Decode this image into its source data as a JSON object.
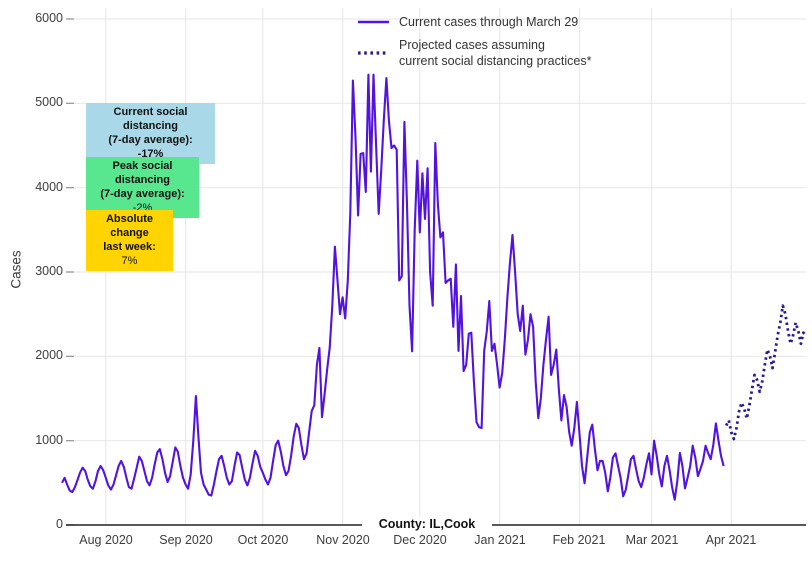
{
  "chart_data": {
    "type": "line",
    "xlabel": "County: IL,Cook",
    "ylabel": "Cases",
    "ylim": [
      0,
      6000
    ],
    "grid": true,
    "legend_position": "top-center-inside",
    "y_ticks": [
      0,
      1000,
      2000,
      3000,
      4000,
      5000,
      6000
    ],
    "x_ticks": [
      {
        "label": "Aug 2020",
        "day": 17
      },
      {
        "label": "Sep 2020",
        "day": 48
      },
      {
        "label": "Oct 2020",
        "day": 78
      },
      {
        "label": "Nov 2020",
        "day": 109
      },
      {
        "label": "Dec 2020",
        "day": 139
      },
      {
        "label": "Jan 2021",
        "day": 170
      },
      {
        "label": "Feb 2021",
        "day": 201
      },
      {
        "label": "Mar 2021",
        "day": 229
      },
      {
        "label": "Apr 2021",
        "day": 260
      }
    ],
    "x_domain_days": [
      0,
      289
    ],
    "series": [
      {
        "name": "Current cases through March 29",
        "style": "solid",
        "color": "#5213E0",
        "start_day": 0,
        "values": [
          500,
          560,
          480,
          410,
          390,
          450,
          530,
          620,
          680,
          640,
          540,
          460,
          430,
          520,
          640,
          700,
          650,
          560,
          470,
          420,
          480,
          590,
          700,
          760,
          690,
          560,
          450,
          430,
          550,
          680,
          810,
          760,
          640,
          520,
          470,
          560,
          720,
          860,
          900,
          780,
          620,
          510,
          580,
          750,
          920,
          870,
          700,
          560,
          480,
          430,
          600,
          1000,
          1530,
          1050,
          620,
          480,
          420,
          360,
          350,
          480,
          640,
          780,
          820,
          700,
          560,
          480,
          520,
          700,
          860,
          830,
          680,
          540,
          470,
          560,
          730,
          880,
          820,
          690,
          620,
          540,
          480,
          560,
          760,
          950,
          1000,
          870,
          700,
          590,
          640,
          820,
          1050,
          1200,
          1150,
          950,
          780,
          850,
          1100,
          1350,
          1420,
          1900,
          2100,
          1280,
          1550,
          1850,
          2100,
          2600,
          3300,
          2900,
          2500,
          2700,
          2450,
          2900,
          3700,
          5270,
          4600,
          3670,
          4400,
          4410,
          3950,
          5340,
          4190,
          5340,
          4500,
          3690,
          4200,
          4800,
          5300,
          4800,
          4470,
          4500,
          4450,
          2900,
          2950,
          4780,
          3800,
          2600,
          2060,
          3500,
          4320,
          3470,
          4170,
          3630,
          4230,
          3000,
          2600,
          4530,
          3800,
          3410,
          3470,
          2870,
          2900,
          2920,
          2350,
          3090,
          2065,
          2715,
          1825,
          1900,
          2270,
          2280,
          1700,
          1220,
          1160,
          1150,
          2065,
          2300,
          2655,
          2065,
          2150,
          1900,
          1630,
          1800,
          2200,
          2700,
          3100,
          3440,
          3000,
          2500,
          2300,
          2600,
          2020,
          2200,
          2500,
          2350,
          1700,
          1265,
          1500,
          1900,
          2200,
          2470,
          1780,
          1900,
          2080,
          1600,
          1240,
          1540,
          1400,
          1100,
          940,
          1150,
          1460,
          1080,
          700,
          495,
          800,
          1100,
          1190,
          900,
          650,
          760,
          760,
          620,
          400,
          560,
          800,
          850,
          700,
          560,
          340,
          420,
          600,
          780,
          820,
          660,
          520,
          450,
          560,
          720,
          850,
          600,
          1000,
          820,
          600,
          458,
          700,
          820,
          650,
          450,
          300,
          520,
          855,
          700,
          434,
          560,
          700,
          940,
          800,
          580,
          663,
          759,
          940,
          850,
          780,
          950,
          1205,
          1000,
          820,
          700
        ]
      },
      {
        "name": "Projected cases assuming current social distancing practices*",
        "style": "dotted",
        "color": "#2A1B8C",
        "start_day": 258,
        "values": [
          1180,
          1240,
          1100,
          1020,
          1150,
          1350,
          1450,
          1380,
          1260,
          1420,
          1600,
          1780,
          1720,
          1580,
          1700,
          1900,
          2080,
          2000,
          1860,
          2050,
          2250,
          2400,
          2600,
          2500,
          2300,
          2150,
          2250,
          2400,
          2300,
          2150,
          2280,
          2250
        ]
      }
    ]
  },
  "legend": {
    "items": [
      {
        "label": "Current cases through March 29"
      },
      {
        "line1": "Projected cases assuming",
        "line2": "current social distancing practices*"
      }
    ]
  },
  "annotations": [
    {
      "bg": "#A9D9E8",
      "lines": [
        "Current social distancing",
        "(7-day average):",
        "-17%"
      ]
    },
    {
      "bg": "#58E68F",
      "lines": [
        "Peak social distancing",
        "(7-day average):",
        "-2%"
      ]
    },
    {
      "bg": "#FFD400",
      "lines": [
        "Absolute change",
        "last week:",
        "7%"
      ]
    }
  ],
  "colors": {
    "grid": "#e9e9e9",
    "axis": "#222222",
    "tick": "#909090"
  }
}
